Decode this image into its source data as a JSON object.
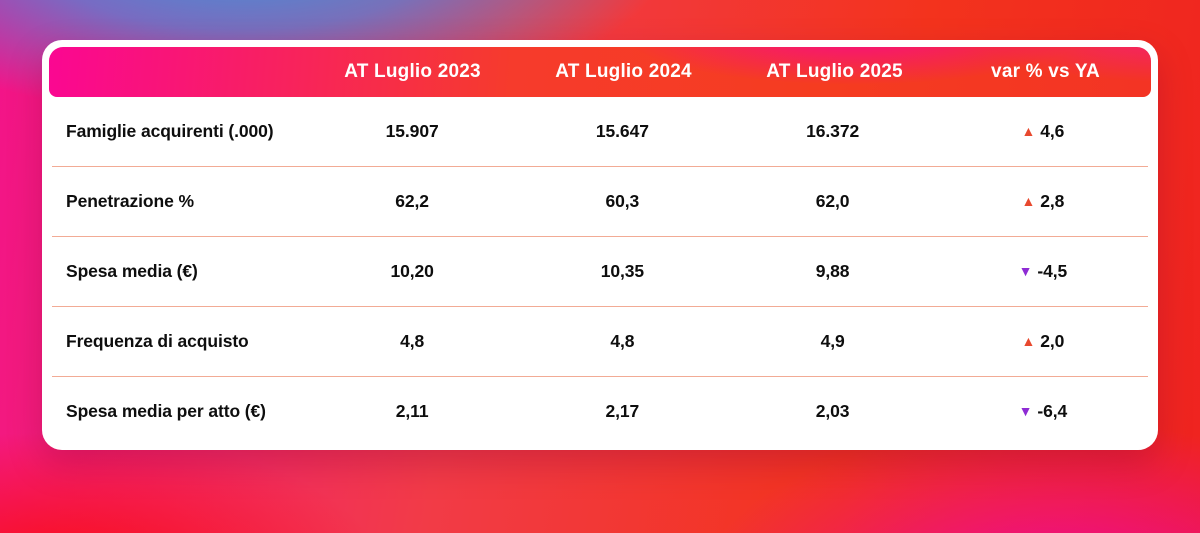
{
  "chart_data": {
    "type": "table",
    "columns": [
      "AT Luglio 2023",
      "AT Luglio 2024",
      "AT Luglio 2025",
      "var % vs YA"
    ],
    "rows": [
      {
        "label": "Famiglie acquirenti (.000)",
        "values": [
          "15.907",
          "15.647",
          "16.372"
        ],
        "var": {
          "direction": "up",
          "arrow": "▲",
          "value": "4,6",
          "color": "#e8492e"
        }
      },
      {
        "label": "Penetrazione %",
        "values": [
          "62,2",
          "60,3",
          "62,0"
        ],
        "var": {
          "direction": "up",
          "arrow": "▲",
          "value": "2,8",
          "color": "#e8492e"
        }
      },
      {
        "label": "Spesa media (€)",
        "values": [
          "10,20",
          "10,35",
          "9,88"
        ],
        "var": {
          "direction": "down",
          "arrow": "▼",
          "value": "-4,5",
          "color": "#8e2bd4"
        }
      },
      {
        "label": "Frequenza di acquisto",
        "values": [
          "4,8",
          "4,8",
          "4,9"
        ],
        "var": {
          "direction": "up",
          "arrow": "▲",
          "value": "2,0",
          "color": "#e8492e"
        }
      },
      {
        "label": "Spesa media per atto (€)",
        "values": [
          "2,11",
          "2,17",
          "2,03"
        ],
        "var": {
          "direction": "down",
          "arrow": "▼",
          "value": "-6,4",
          "color": "#8e2bd4"
        }
      }
    ],
    "colors": {
      "up": "#e8492e",
      "down": "#8e2bd4",
      "separator": "#f2ab95",
      "header_magenta": "#fa0792",
      "header_red": "#f53c20",
      "text": "#0e0e0e"
    },
    "layout": {
      "grid": "off",
      "legend": "none",
      "title": ""
    }
  }
}
